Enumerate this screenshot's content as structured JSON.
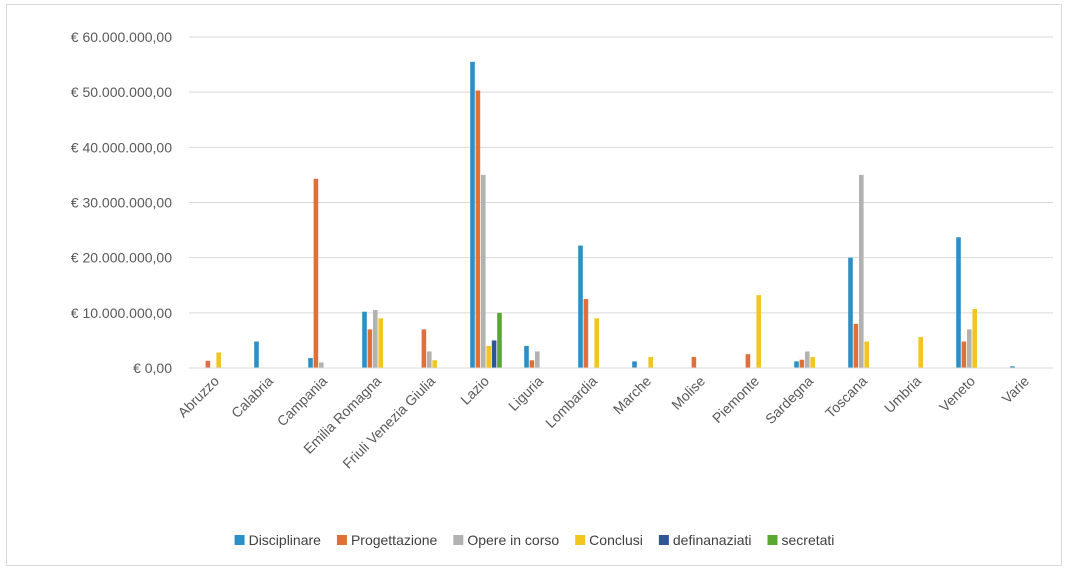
{
  "chart_data": {
    "type": "bar",
    "title": "",
    "xlabel": "",
    "ylabel": "",
    "ylim": [
      0,
      60000000
    ],
    "yticks": [
      0,
      10000000,
      20000000,
      30000000,
      40000000,
      50000000,
      60000000
    ],
    "ytick_labels": [
      "€ 0,00",
      "€ 10.000.000,00",
      "€ 20.000.000,00",
      "€ 30.000.000,00",
      "€ 40.000.000,00",
      "€ 50.000.000,00",
      "€ 60.000.000,00"
    ],
    "grid": true,
    "legend_position": "bottom",
    "categories": [
      "Abruzzo",
      "Calabria",
      "Campania",
      "Emilia Romagna",
      "Friuli Venezia Giulia",
      "Lazio",
      "Liguria",
      "Lombardia",
      "Marche",
      "Molise",
      "Piemonte",
      "Sardegna",
      "Toscana",
      "Umbria",
      "Veneto",
      "Varie"
    ],
    "series": [
      {
        "name": "Disciplinare",
        "color": "#2e8fc4",
        "values": [
          0,
          4800000,
          1800000,
          10200000,
          0,
          55500000,
          4000000,
          22200000,
          1200000,
          0,
          0,
          1200000,
          20000000,
          0,
          23700000,
          300000
        ]
      },
      {
        "name": "Progettazione",
        "color": "#e0703a",
        "values": [
          1300000,
          0,
          34300000,
          7000000,
          7000000,
          50300000,
          1400000,
          12500000,
          0,
          2000000,
          2500000,
          1500000,
          8000000,
          0,
          4800000,
          0
        ]
      },
      {
        "name": "Opere in corso",
        "color": "#b2b2b2",
        "values": [
          0,
          0,
          1000000,
          10500000,
          3000000,
          35000000,
          3000000,
          0,
          0,
          0,
          0,
          3000000,
          35000000,
          0,
          7000000,
          0
        ]
      },
      {
        "name": "Conclusi",
        "color": "#f2c51f",
        "values": [
          2800000,
          0,
          0,
          9000000,
          1400000,
          4000000,
          0,
          9000000,
          2000000,
          0,
          13200000,
          2000000,
          4800000,
          5600000,
          10700000,
          0
        ]
      },
      {
        "name": "definanaziati",
        "color": "#2f5597",
        "values": [
          0,
          0,
          0,
          0,
          0,
          5000000,
          0,
          0,
          0,
          0,
          0,
          0,
          0,
          0,
          0,
          0
        ]
      },
      {
        "name": "secretati",
        "color": "#5aa832",
        "values": [
          0,
          0,
          0,
          0,
          0,
          10000000,
          0,
          0,
          0,
          0,
          0,
          0,
          0,
          0,
          0,
          0
        ]
      }
    ]
  }
}
